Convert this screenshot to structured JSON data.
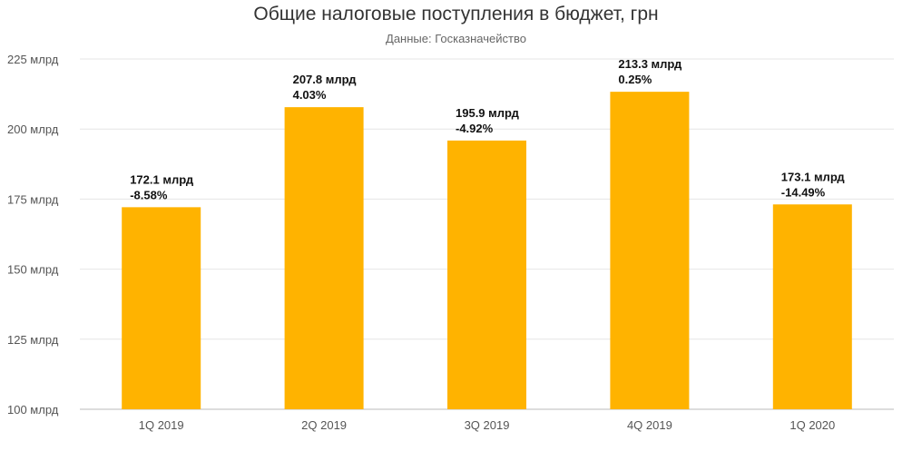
{
  "chart_data": {
    "type": "bar",
    "title": "Общие налоговые поступления в бюджет, грн",
    "subtitle": "Данные: Госказначейство",
    "categories": [
      "1Q 2019",
      "2Q 2019",
      "3Q 2019",
      "4Q 2019",
      "1Q 2020"
    ],
    "values": [
      172.1,
      207.8,
      195.9,
      213.3,
      173.1
    ],
    "value_labels": [
      "172.1 млрд",
      "207.8 млрд",
      "195.9 млрд",
      "213.3 млрд",
      "173.1 млрд"
    ],
    "change_labels": [
      "-8.58%",
      "4.03%",
      "-4.92%",
      "0.25%",
      "-14.49%"
    ],
    "ylim": [
      100,
      225
    ],
    "yticks": [
      100,
      125,
      150,
      175,
      200,
      225
    ],
    "ytick_labels": [
      "100 млрд",
      "125 млрд",
      "150 млрд",
      "175 млрд",
      "200 млрд",
      "225 млрд"
    ],
    "grid": true,
    "legend": "none",
    "bar_color": "#FFB300"
  }
}
